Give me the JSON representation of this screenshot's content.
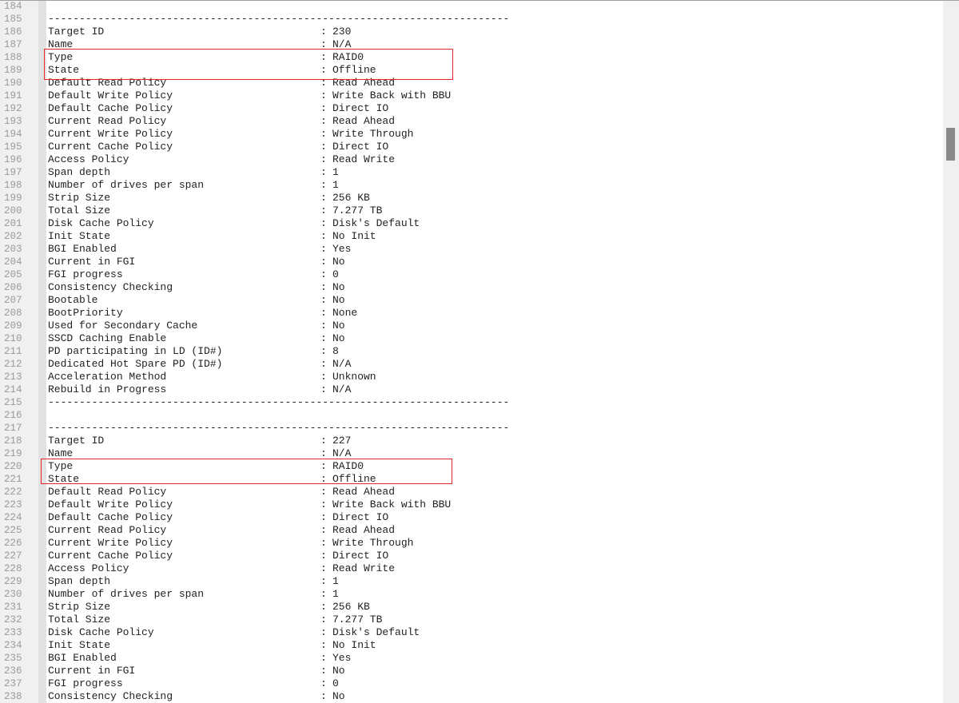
{
  "editor": {
    "first_line_number": 184,
    "separator": "--------------------------------------------------------------------------",
    "colon": ":",
    "lines": [
      {
        "n": "184"
      },
      {
        "n": "185",
        "sep": true
      },
      {
        "n": "186",
        "k": "Target ID",
        "v": "230"
      },
      {
        "n": "187",
        "k": "Name",
        "v": "N/A"
      },
      {
        "n": "188",
        "k": "Type",
        "v": "RAID0"
      },
      {
        "n": "189",
        "k": "State",
        "v": "Offline"
      },
      {
        "n": "190",
        "k": "Default Read Policy",
        "v": "Read Ahead"
      },
      {
        "n": "191",
        "k": "Default Write Policy",
        "v": "Write Back with BBU"
      },
      {
        "n": "192",
        "k": "Default Cache Policy",
        "v": "Direct IO"
      },
      {
        "n": "193",
        "k": "Current Read Policy",
        "v": "Read Ahead"
      },
      {
        "n": "194",
        "k": "Current Write Policy",
        "v": "Write Through"
      },
      {
        "n": "195",
        "k": "Current Cache Policy",
        "v": "Direct IO"
      },
      {
        "n": "196",
        "k": "Access Policy",
        "v": "Read Write"
      },
      {
        "n": "197",
        "k": "Span depth",
        "v": "1"
      },
      {
        "n": "198",
        "k": "Number of drives per span",
        "v": "1"
      },
      {
        "n": "199",
        "k": "Strip Size",
        "v": "256 KB"
      },
      {
        "n": "200",
        "k": "Total Size",
        "v": "7.277 TB"
      },
      {
        "n": "201",
        "k": "Disk Cache Policy",
        "v": "Disk's Default"
      },
      {
        "n": "202",
        "k": "Init State",
        "v": "No Init"
      },
      {
        "n": "203",
        "k": "BGI Enabled",
        "v": "Yes"
      },
      {
        "n": "204",
        "k": "Current in FGI",
        "v": "No"
      },
      {
        "n": "205",
        "k": "FGI progress",
        "v": "0"
      },
      {
        "n": "206",
        "k": "Consistency Checking",
        "v": "No"
      },
      {
        "n": "207",
        "k": "Bootable",
        "v": "No"
      },
      {
        "n": "208",
        "k": "BootPriority",
        "v": "None"
      },
      {
        "n": "209",
        "k": "Used for Secondary Cache",
        "v": "No"
      },
      {
        "n": "210",
        "k": "SSCD Caching Enable",
        "v": "No"
      },
      {
        "n": "211",
        "k": "PD participating in LD (ID#)",
        "v": "8"
      },
      {
        "n": "212",
        "k": "Dedicated Hot Spare PD (ID#)",
        "v": "N/A"
      },
      {
        "n": "213",
        "k": "Acceleration Method",
        "v": "Unknown"
      },
      {
        "n": "214",
        "k": "Rebuild in Progress",
        "v": "N/A"
      },
      {
        "n": "215",
        "sep": true
      },
      {
        "n": "216"
      },
      {
        "n": "217",
        "sep": true
      },
      {
        "n": "218",
        "k": "Target ID",
        "v": "227"
      },
      {
        "n": "219",
        "k": "Name",
        "v": "N/A"
      },
      {
        "n": "220",
        "k": "Type",
        "v": "RAID0"
      },
      {
        "n": "221",
        "k": "State",
        "v": "Offline"
      },
      {
        "n": "222",
        "k": "Default Read Policy",
        "v": "Read Ahead"
      },
      {
        "n": "223",
        "k": "Default Write Policy",
        "v": "Write Back with BBU"
      },
      {
        "n": "224",
        "k": "Default Cache Policy",
        "v": "Direct IO"
      },
      {
        "n": "225",
        "k": "Current Read Policy",
        "v": "Read Ahead"
      },
      {
        "n": "226",
        "k": "Current Write Policy",
        "v": "Write Through"
      },
      {
        "n": "227",
        "k": "Current Cache Policy",
        "v": "Direct IO"
      },
      {
        "n": "228",
        "k": "Access Policy",
        "v": "Read Write"
      },
      {
        "n": "229",
        "k": "Span depth",
        "v": "1"
      },
      {
        "n": "230",
        "k": "Number of drives per span",
        "v": "1"
      },
      {
        "n": "231",
        "k": "Strip Size",
        "v": "256 KB"
      },
      {
        "n": "232",
        "k": "Total Size",
        "v": "7.277 TB"
      },
      {
        "n": "233",
        "k": "Disk Cache Policy",
        "v": "Disk's Default"
      },
      {
        "n": "234",
        "k": "Init State",
        "v": "No Init"
      },
      {
        "n": "235",
        "k": "BGI Enabled",
        "v": "Yes"
      },
      {
        "n": "236",
        "k": "Current in FGI",
        "v": "No"
      },
      {
        "n": "237",
        "k": "FGI progress",
        "v": "0"
      },
      {
        "n": "238",
        "k": "Consistency Checking",
        "v": "No"
      }
    ]
  },
  "highlight_color": "#e8262a",
  "scrollbar": {
    "position_fraction": 0.2
  }
}
